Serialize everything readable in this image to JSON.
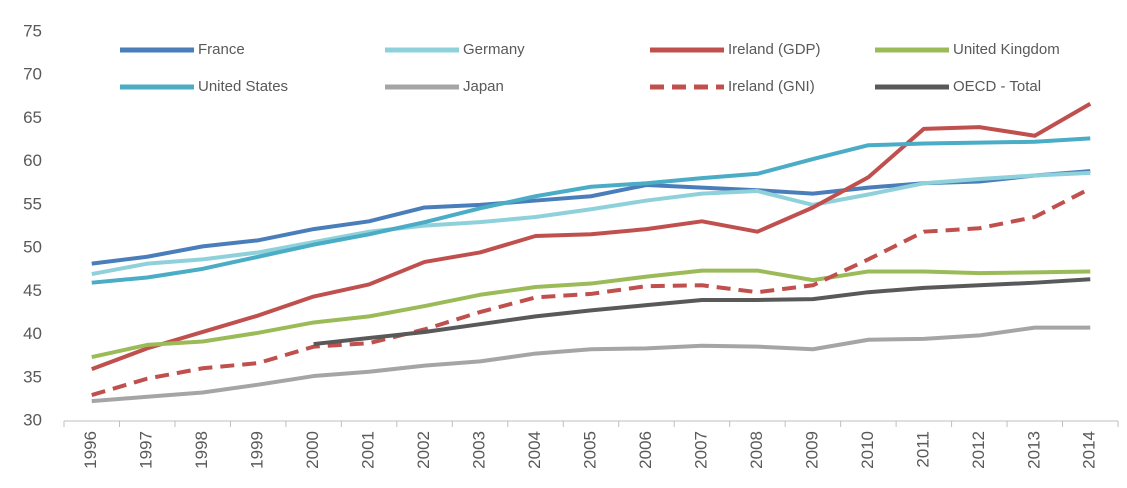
{
  "chart_data": {
    "type": "line",
    "categories": [
      "1996",
      "1997",
      "1998",
      "1999",
      "2000",
      "2001",
      "2002",
      "2003",
      "2004",
      "2005",
      "2006",
      "2007",
      "2008",
      "2009",
      "2010",
      "2011",
      "2012",
      "2013",
      "2014"
    ],
    "series": [
      {
        "name": "France",
        "color": "#4a7ebb",
        "values": [
          48.2,
          49.0,
          50.2,
          50.9,
          52.2,
          53.1,
          54.7,
          55.0,
          55.5,
          56.0,
          57.3,
          57.0,
          56.7,
          56.3,
          57.0,
          57.5,
          57.7,
          58.4,
          58.9
        ]
      },
      {
        "name": "Germany",
        "color": "#8fd1db",
        "values": [
          47.0,
          48.2,
          48.7,
          49.5,
          50.7,
          51.9,
          52.6,
          53.0,
          53.6,
          54.5,
          55.5,
          56.3,
          56.6,
          55.0,
          56.2,
          57.5,
          58.0,
          58.4,
          58.7
        ]
      },
      {
        "name": "Ireland (GDP)",
        "color": "#c0504d",
        "values": [
          36.0,
          38.4,
          40.3,
          42.2,
          44.4,
          45.8,
          48.4,
          49.5,
          51.4,
          51.6,
          52.2,
          53.1,
          51.9,
          54.7,
          58.2,
          63.8,
          64.0,
          63.0,
          66.7
        ]
      },
      {
        "name": "United Kingdom",
        "color": "#9bbb59",
        "values": [
          37.4,
          38.8,
          39.2,
          40.2,
          41.4,
          42.1,
          43.3,
          44.6,
          45.5,
          45.9,
          46.7,
          47.4,
          47.4,
          46.3,
          47.3,
          47.3,
          47.1,
          47.2,
          47.3
        ]
      },
      {
        "name": "United States",
        "color": "#4bacc6",
        "values": [
          46.0,
          46.6,
          47.6,
          49.0,
          50.4,
          51.6,
          53.0,
          54.6,
          56.0,
          57.1,
          57.5,
          58.1,
          58.6,
          60.3,
          61.9,
          62.1,
          62.2,
          62.3,
          62.7
        ]
      },
      {
        "name": "Japan",
        "color": "#a5a5a5",
        "values": [
          32.3,
          32.8,
          33.3,
          34.2,
          35.2,
          35.7,
          36.4,
          36.9,
          37.8,
          38.3,
          38.4,
          38.7,
          38.6,
          38.3,
          39.4,
          39.5,
          39.9,
          40.8,
          40.8
        ]
      },
      {
        "name": "Ireland (GNI)",
        "color": "#c0504d",
        "style": "dashed",
        "values": [
          33.0,
          34.9,
          36.1,
          36.7,
          38.6,
          39.0,
          40.6,
          42.6,
          44.3,
          44.7,
          45.6,
          45.7,
          44.9,
          45.7,
          48.7,
          51.9,
          52.3,
          53.6,
          56.9
        ]
      },
      {
        "name": "OECD - Total",
        "color": "#595959",
        "values": [
          null,
          null,
          null,
          null,
          38.9,
          39.6,
          40.3,
          41.2,
          42.1,
          42.8,
          43.4,
          44.0,
          44.0,
          44.1,
          44.9,
          45.4,
          45.7,
          46.0,
          46.4
        ]
      }
    ],
    "ylim": [
      30,
      75
    ],
    "yticks": [
      30,
      35,
      40,
      45,
      50,
      55,
      60,
      65,
      70,
      75
    ],
    "grid": false,
    "legend": "top"
  }
}
